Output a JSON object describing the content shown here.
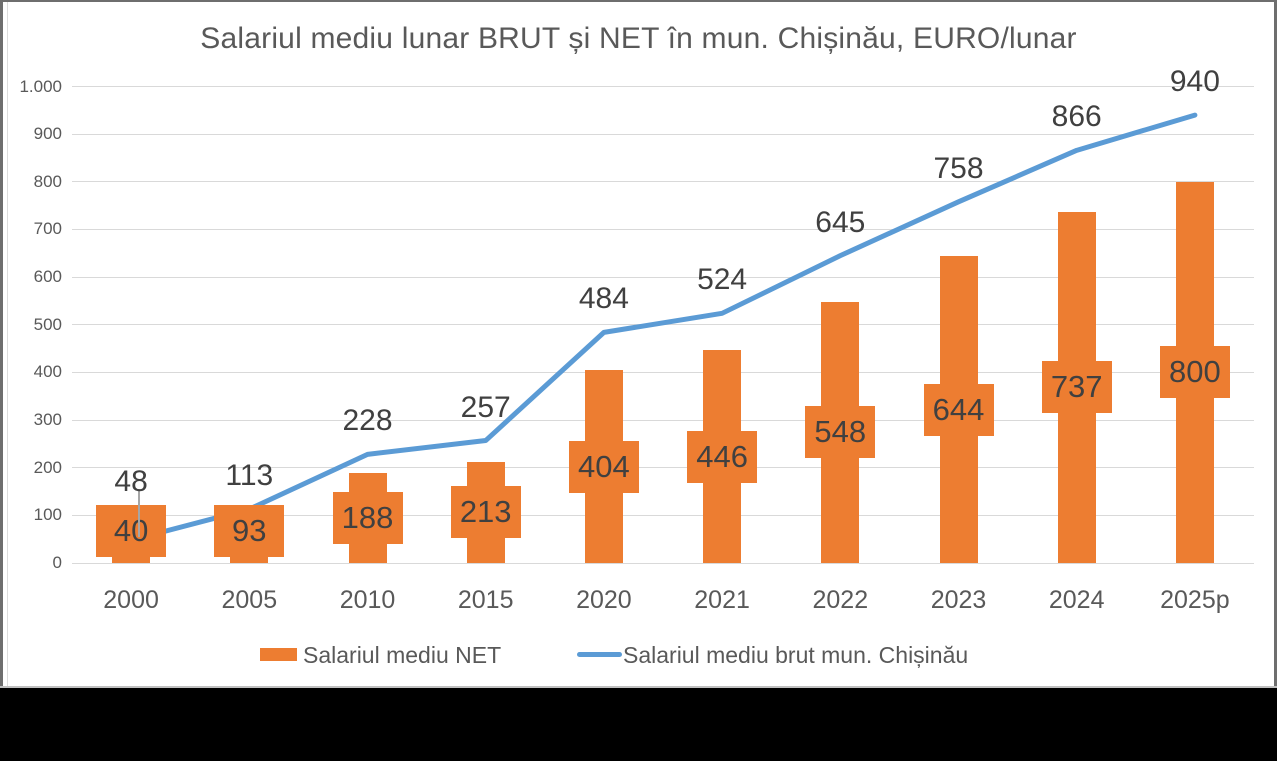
{
  "title": "Salariul mediu lunar BRUT și NET în mun. Chișinău, EURO/lunar",
  "chart_data": {
    "type": "combo-bar-line",
    "categories": [
      "2000",
      "2005",
      "2010",
      "2015",
      "2020",
      "2021",
      "2022",
      "2023",
      "2024",
      "2025p"
    ],
    "series": [
      {
        "name": "Salariul mediu NET",
        "type": "bar",
        "color": "#ED7D31",
        "values": [
          40,
          93,
          188,
          213,
          404,
          446,
          548,
          644,
          737,
          800
        ],
        "data_labels": [
          "40",
          "93",
          "188",
          "213",
          "404",
          "446",
          "548",
          "644",
          "737",
          "800"
        ]
      },
      {
        "name": "Salariul mediu brut mun. Chișinău",
        "type": "line",
        "color": "#5B9BD5",
        "values": [
          48,
          113,
          228,
          257,
          484,
          524,
          645,
          758,
          866,
          940
        ],
        "data_labels": [
          "48",
          "113",
          "228",
          "257",
          "484",
          "524",
          "645",
          "758",
          "866",
          "940"
        ]
      }
    ],
    "ylim": [
      0,
      1000
    ],
    "ytick_values": [
      0,
      100,
      200,
      300,
      400,
      500,
      600,
      700,
      800,
      900,
      1000
    ],
    "ytick_labels": [
      "0",
      "100",
      "200",
      "300",
      "400",
      "500",
      "600",
      "700",
      "800",
      "900",
      "1.000"
    ],
    "grid": true,
    "legend_position": "bottom"
  },
  "colors": {
    "bar": "#ED7D31",
    "line": "#5B9BD5",
    "data_label_text": "#404040",
    "axis_text": "#595959",
    "title_text": "#595959",
    "gridline": "#D9D9D9",
    "leader_line": "#A6A6A6",
    "panel_background": "#FFFFFF",
    "outer_band": "#000000"
  }
}
